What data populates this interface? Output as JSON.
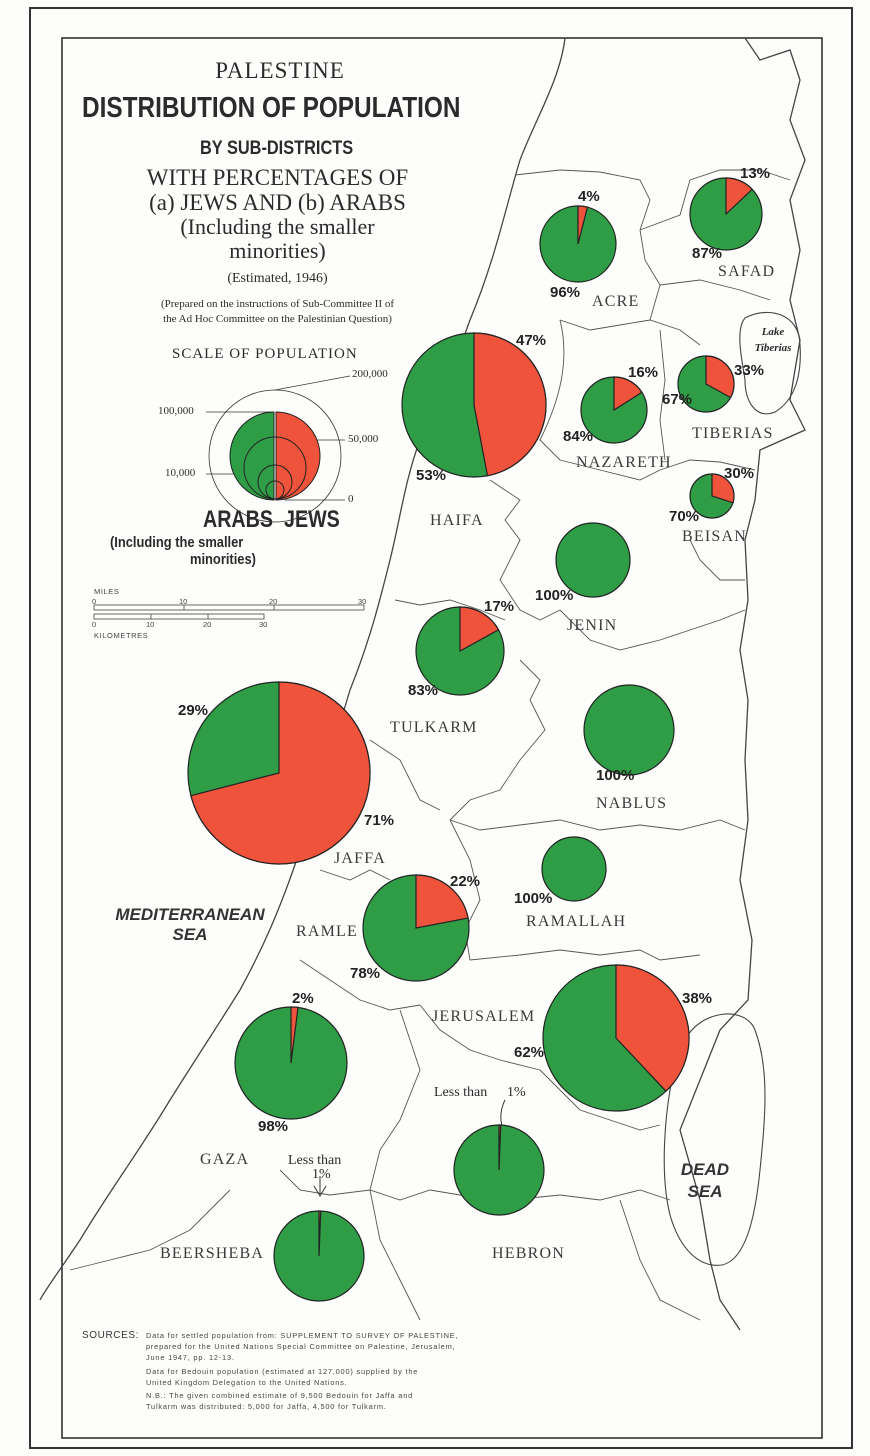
{
  "title": {
    "line1": "PALESTINE",
    "line2": "DISTRIBUTION OF POPULATION",
    "line3": "BY SUB-DISTRICTS",
    "line4": "WITH PERCENTAGES OF",
    "line5": "(a) JEWS AND (b) ARABS",
    "line6": "(Including the smaller",
    "line7": "minorities)",
    "estimate": "(Estimated, 1946)",
    "prepared1": "(Prepared on the instructions of Sub-Committee II of",
    "prepared2": "the Ad Hoc Committee on the Palestinian Question)"
  },
  "scale": {
    "title": "SCALE OF POPULATION",
    "label_200000": "200,000",
    "label_100000": "100,000",
    "label_50000": "50,000",
    "label_10000": "10,000",
    "label_0": "0",
    "arabs": "ARABS",
    "jews": "JEWS",
    "note1": "(Including the smaller",
    "note2": "minorities)"
  },
  "distance": {
    "miles": "MILES",
    "km": "KILOMETRES",
    "miles_ticks": [
      "0",
      "10",
      "20",
      "30"
    ],
    "km_ticks": [
      "0",
      "10",
      "20",
      "30"
    ]
  },
  "labels": {
    "sea1": "MEDITERRANEAN",
    "sea2": "SEA",
    "lake1": "Lake",
    "lake2": "Tiberias",
    "dead1": "DEAD",
    "dead2": "SEA",
    "less1": "Less than",
    "less1b": "1%",
    "less2": "Less than",
    "less2b": "1%"
  },
  "colors": {
    "jews": "#f0533b",
    "arabs": "#2f9c46",
    "outline": "#222222"
  },
  "districts": [
    {
      "name": "ACRE",
      "jews_pct": 4,
      "arabs_pct": 96,
      "jews_label": "4%",
      "arabs_label": "96%"
    },
    {
      "name": "SAFAD",
      "jews_pct": 13,
      "arabs_pct": 87,
      "jews_label": "13%",
      "arabs_label": "87%"
    },
    {
      "name": "HAIFA",
      "jews_pct": 47,
      "arabs_pct": 53,
      "jews_label": "47%",
      "arabs_label": "53%"
    },
    {
      "name": "NAZARETH",
      "jews_pct": 16,
      "arabs_pct": 84,
      "jews_label": "16%",
      "arabs_label": "84%"
    },
    {
      "name": "TIBERIAS",
      "jews_pct": 33,
      "arabs_pct": 67,
      "jews_label": "33%",
      "arabs_label": "67%"
    },
    {
      "name": "BEISAN",
      "jews_pct": 30,
      "arabs_pct": 70,
      "jews_label": "30%",
      "arabs_label": "70%"
    },
    {
      "name": "JENIN",
      "jews_pct": 0,
      "arabs_pct": 100,
      "jews_label": "",
      "arabs_label": "100%"
    },
    {
      "name": "TULKARM",
      "jews_pct": 17,
      "arabs_pct": 83,
      "jews_label": "17%",
      "arabs_label": "83%"
    },
    {
      "name": "NABLUS",
      "jews_pct": 0,
      "arabs_pct": 100,
      "jews_label": "",
      "arabs_label": "100%"
    },
    {
      "name": "JAFFA",
      "jews_pct": 71,
      "arabs_pct": 29,
      "jews_label": "71%",
      "arabs_label": "29%"
    },
    {
      "name": "RAMLE",
      "jews_pct": 22,
      "arabs_pct": 78,
      "jews_label": "22%",
      "arabs_label": "78%"
    },
    {
      "name": "RAMALLAH",
      "jews_pct": 0,
      "arabs_pct": 100,
      "jews_label": "",
      "arabs_label": "100%"
    },
    {
      "name": "JERUSALEM",
      "jews_pct": 38,
      "arabs_pct": 62,
      "jews_label": "38%",
      "arabs_label": "62%"
    },
    {
      "name": "GAZA",
      "jews_pct": 2,
      "arabs_pct": 98,
      "jews_label": "2%",
      "arabs_label": "98%"
    },
    {
      "name": "HEBRON",
      "jews_pct": 0.6,
      "arabs_pct": 99.4,
      "jews_label": "",
      "arabs_label": ""
    },
    {
      "name": "BEERSHEBA",
      "jews_pct": 0.6,
      "arabs_pct": 99.4,
      "jews_label": "",
      "arabs_label": ""
    }
  ],
  "sources": {
    "label": "SOURCES:",
    "lines": [
      "Data  for  settled  population  from:  SUPPLEMENT  TO  SURVEY  OF  PALESTINE,",
      "prepared  for  the  United  Nations  Special  Committee  on  Palestine,  Jerusalem,",
      "June  1947,  pp.  12-13.",
      "Data  for  Bedouin  population  (estimated  at  127,000)  supplied  by  the",
      "United  Kingdom  Delegation  to  the  United  Nations.",
      "N.B.:  The  given  combined  estimate  of  9,500  Bedouin  for  Jaffa  and",
      "Tulkarm  was  distributed:  5,000  for  Jaffa,  4,500  for  Tulkarm."
    ]
  }
}
